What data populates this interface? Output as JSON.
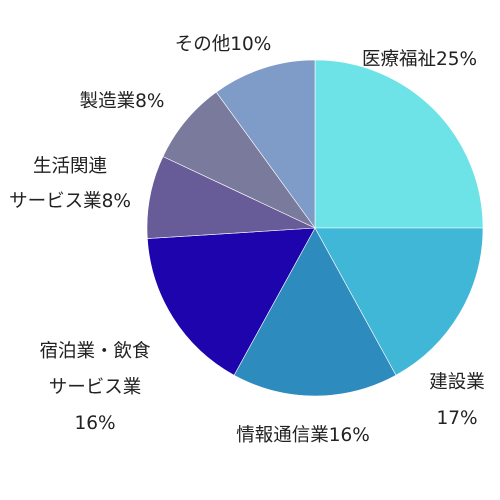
{
  "chart_data": {
    "type": "pie",
    "title": "",
    "legend": "none",
    "slices": [
      {
        "name": "医療福祉",
        "value": 25,
        "color": "#6de3e8",
        "label_lines": [
          "医療福祉25%"
        ]
      },
      {
        "name": "建設業",
        "value": 17,
        "color": "#41b7d8",
        "label_lines": [
          "建設業",
          "17%"
        ]
      },
      {
        "name": "情報通信業",
        "value": 16,
        "color": "#2e8bbd",
        "label_lines": [
          "情報通信業16%"
        ]
      },
      {
        "name": "宿泊業・飲食サービス業",
        "value": 16,
        "color": "#1d04ac",
        "label_lines": [
          "宿泊業・飲食",
          "サービス業",
          "16%"
        ]
      },
      {
        "name": "生活関連サービス業",
        "value": 8,
        "color": "#675b98",
        "label_lines": [
          "生活関連",
          "サービス業8%"
        ]
      },
      {
        "name": "製造業",
        "value": 8,
        "color": "#797a9c",
        "label_lines": [
          "製造業8%"
        ]
      },
      {
        "name": "その他",
        "value": 10,
        "color": "#7f9bc7",
        "label_lines": [
          "その他10%"
        ]
      }
    ]
  }
}
